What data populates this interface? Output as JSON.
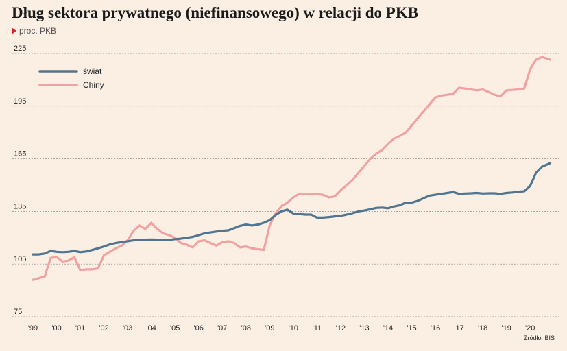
{
  "title": "Dług sektora prywatnego (niefinansowego) w relacji do PKB",
  "subtitle": "proc. PKB",
  "source": "Źródło: BIS",
  "chart_data": {
    "type": "line",
    "ylim": [
      75,
      225
    ],
    "yticks": [
      225,
      195,
      165,
      135,
      105,
      75
    ],
    "xlim": [
      1999.0,
      2020.95
    ],
    "xticks": [
      {
        "label": "'99",
        "x": 1999
      },
      {
        "label": "'00",
        "x": 2000
      },
      {
        "label": "'01",
        "x": 2001
      },
      {
        "label": "'02",
        "x": 2002
      },
      {
        "label": "'03",
        "x": 2003
      },
      {
        "label": "'04",
        "x": 2004
      },
      {
        "label": "'05",
        "x": 2005
      },
      {
        "label": "'06",
        "x": 2006
      },
      {
        "label": "'07",
        "x": 2007
      },
      {
        "label": "'08",
        "x": 2008
      },
      {
        "label": "'09",
        "x": 2009
      },
      {
        "label": "'10",
        "x": 2010
      },
      {
        "label": "'11",
        "x": 2011
      },
      {
        "label": "'12",
        "x": 2012
      },
      {
        "label": "'13",
        "x": 2013
      },
      {
        "label": "'14",
        "x": 2014
      },
      {
        "label": "'15",
        "x": 2015
      },
      {
        "label": "'16",
        "x": 2016
      },
      {
        "label": "'17",
        "x": 2017
      },
      {
        "label": "'18",
        "x": 2018
      },
      {
        "label": "'19",
        "x": 2019
      },
      {
        "label": "'20",
        "x": 2020
      }
    ],
    "grid": "horizontal-dashed",
    "legend_position": "top-left",
    "series": [
      {
        "name": "świat",
        "color": "#4f7590",
        "points": [
          [
            1999.0,
            110.5
          ],
          [
            1999.25,
            110.5
          ],
          [
            1999.5,
            111
          ],
          [
            1999.75,
            112.5
          ],
          [
            2000.0,
            112
          ],
          [
            2000.25,
            111.8
          ],
          [
            2000.5,
            112
          ],
          [
            2000.75,
            112.5
          ],
          [
            2001.0,
            111.8
          ],
          [
            2001.25,
            112.2
          ],
          [
            2001.5,
            113
          ],
          [
            2001.75,
            114
          ],
          [
            2002.0,
            115
          ],
          [
            2002.25,
            116.2
          ],
          [
            2002.5,
            117
          ],
          [
            2002.75,
            117.5
          ],
          [
            2003.0,
            118
          ],
          [
            2003.25,
            118.5
          ],
          [
            2003.5,
            118.8
          ],
          [
            2003.75,
            118.9
          ],
          [
            2004.0,
            119
          ],
          [
            2004.25,
            118.9
          ],
          [
            2004.5,
            118.8
          ],
          [
            2004.75,
            118.8
          ],
          [
            2005.0,
            119.2
          ],
          [
            2005.25,
            119.5
          ],
          [
            2005.5,
            120
          ],
          [
            2005.75,
            120.5
          ],
          [
            2006.0,
            121.5
          ],
          [
            2006.25,
            122.5
          ],
          [
            2006.5,
            123
          ],
          [
            2006.75,
            123.5
          ],
          [
            2007.0,
            124
          ],
          [
            2007.25,
            124.2
          ],
          [
            2007.5,
            125.5
          ],
          [
            2007.75,
            126.8
          ],
          [
            2008.0,
            127.5
          ],
          [
            2008.25,
            127
          ],
          [
            2008.5,
            127.5
          ],
          [
            2008.75,
            128.5
          ],
          [
            2009.0,
            130
          ],
          [
            2009.25,
            133
          ],
          [
            2009.5,
            135
          ],
          [
            2009.75,
            136
          ],
          [
            2010.0,
            133.8
          ],
          [
            2010.25,
            133.5
          ],
          [
            2010.5,
            133.2
          ],
          [
            2010.75,
            133.2
          ],
          [
            2011.0,
            131.5
          ],
          [
            2011.25,
            131.5
          ],
          [
            2011.5,
            131.8
          ],
          [
            2011.75,
            132.2
          ],
          [
            2012.0,
            132.5
          ],
          [
            2012.25,
            133.2
          ],
          [
            2012.5,
            134
          ],
          [
            2012.75,
            135
          ],
          [
            2013.0,
            135.5
          ],
          [
            2013.25,
            136.2
          ],
          [
            2013.5,
            137
          ],
          [
            2013.75,
            137.2
          ],
          [
            2014.0,
            136.8
          ],
          [
            2014.25,
            137.8
          ],
          [
            2014.5,
            138.5
          ],
          [
            2014.75,
            140
          ],
          [
            2015.0,
            140
          ],
          [
            2015.25,
            141
          ],
          [
            2015.5,
            142.5
          ],
          [
            2015.75,
            144
          ],
          [
            2016.0,
            144.5
          ],
          [
            2016.25,
            145
          ],
          [
            2016.5,
            145.5
          ],
          [
            2016.75,
            146
          ],
          [
            2017.0,
            145
          ],
          [
            2017.25,
            145.2
          ],
          [
            2017.5,
            145.3
          ],
          [
            2017.75,
            145.5
          ],
          [
            2018.0,
            145.2
          ],
          [
            2018.25,
            145.3
          ],
          [
            2018.5,
            145.3
          ],
          [
            2018.75,
            145
          ],
          [
            2019.0,
            145.5
          ],
          [
            2019.25,
            145.8
          ],
          [
            2019.5,
            146.2
          ],
          [
            2019.75,
            146.5
          ],
          [
            2020.0,
            149.5
          ],
          [
            2020.25,
            157
          ],
          [
            2020.5,
            160.5
          ],
          [
            2020.85,
            162.5
          ]
        ]
      },
      {
        "name": "Chiny",
        "color": "#f0a1a1",
        "points": [
          [
            1999.0,
            96
          ],
          [
            1999.25,
            97
          ],
          [
            1999.5,
            98
          ],
          [
            1999.75,
            108.5
          ],
          [
            2000.0,
            109
          ],
          [
            2000.25,
            106.5
          ],
          [
            2000.5,
            107
          ],
          [
            2000.75,
            109
          ],
          [
            2001.0,
            101.5
          ],
          [
            2001.25,
            102
          ],
          [
            2001.5,
            102
          ],
          [
            2001.75,
            102.5
          ],
          [
            2002.0,
            110
          ],
          [
            2002.25,
            112
          ],
          [
            2002.5,
            114
          ],
          [
            2002.75,
            115.5
          ],
          [
            2003.0,
            118.5
          ],
          [
            2003.25,
            124
          ],
          [
            2003.5,
            127
          ],
          [
            2003.75,
            125
          ],
          [
            2004.0,
            128.5
          ],
          [
            2004.25,
            125
          ],
          [
            2004.5,
            122.5
          ],
          [
            2004.75,
            121.5
          ],
          [
            2005.0,
            120
          ],
          [
            2005.25,
            117
          ],
          [
            2005.5,
            116
          ],
          [
            2005.75,
            114.5
          ],
          [
            2006.0,
            118
          ],
          [
            2006.25,
            118.5
          ],
          [
            2006.5,
            117
          ],
          [
            2006.75,
            115.5
          ],
          [
            2007.0,
            117.5
          ],
          [
            2007.25,
            118
          ],
          [
            2007.5,
            117
          ],
          [
            2007.75,
            114.5
          ],
          [
            2008.0,
            115
          ],
          [
            2008.25,
            114
          ],
          [
            2008.5,
            113.5
          ],
          [
            2008.75,
            113
          ],
          [
            2009.0,
            127
          ],
          [
            2009.25,
            134
          ],
          [
            2009.5,
            138
          ],
          [
            2009.75,
            140
          ],
          [
            2010.0,
            143
          ],
          [
            2010.25,
            145
          ],
          [
            2010.5,
            145
          ],
          [
            2010.75,
            144.7
          ],
          [
            2011.0,
            144.8
          ],
          [
            2011.25,
            144.5
          ],
          [
            2011.5,
            143
          ],
          [
            2011.75,
            143.5
          ],
          [
            2012.0,
            147
          ],
          [
            2012.25,
            150
          ],
          [
            2012.5,
            153
          ],
          [
            2012.75,
            157
          ],
          [
            2013.0,
            161
          ],
          [
            2013.25,
            165
          ],
          [
            2013.5,
            168
          ],
          [
            2013.75,
            170
          ],
          [
            2014.0,
            173.5
          ],
          [
            2014.25,
            176.5
          ],
          [
            2014.5,
            178
          ],
          [
            2014.75,
            180
          ],
          [
            2015.0,
            184
          ],
          [
            2015.25,
            188
          ],
          [
            2015.5,
            192
          ],
          [
            2015.75,
            196
          ],
          [
            2016.0,
            200
          ],
          [
            2016.25,
            201
          ],
          [
            2016.5,
            201.5
          ],
          [
            2016.75,
            202
          ],
          [
            2017.0,
            205.5
          ],
          [
            2017.25,
            205
          ],
          [
            2017.5,
            204.5
          ],
          [
            2017.75,
            204
          ],
          [
            2018.0,
            204.5
          ],
          [
            2018.25,
            203
          ],
          [
            2018.5,
            201.5
          ],
          [
            2018.75,
            200.5
          ],
          [
            2019.0,
            204
          ],
          [
            2019.25,
            204.2
          ],
          [
            2019.5,
            204.5
          ],
          [
            2019.75,
            205
          ],
          [
            2020.0,
            216
          ],
          [
            2020.25,
            221.5
          ],
          [
            2020.5,
            223
          ],
          [
            2020.85,
            221.5
          ]
        ]
      }
    ]
  }
}
